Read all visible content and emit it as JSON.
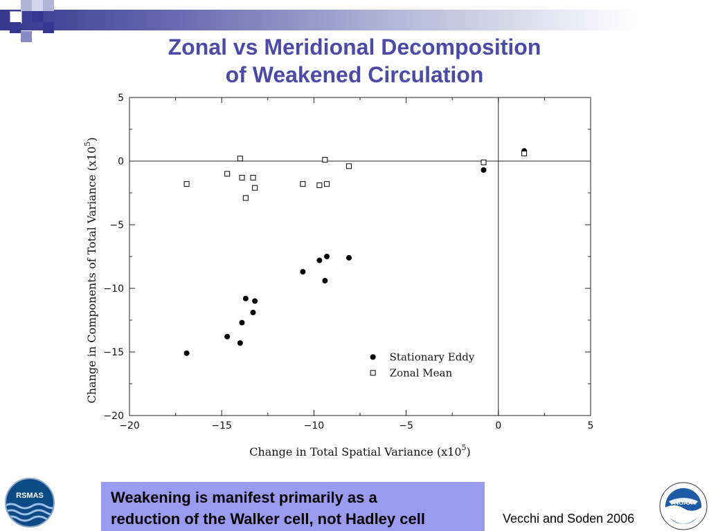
{
  "slide": {
    "title_line1": "Zonal vs Meridional Decomposition",
    "title_line2": "of Weakened Circulation",
    "callout_line1": "Weakening is manifest primarily as a",
    "callout_line2": "reduction of the Walker cell, not Hadley cell",
    "credit": "Vecchi and Soden 2006",
    "logo_left_text": "RSMAS",
    "logo_right_text": "NOAA",
    "colors": {
      "title": "#4b4aa6",
      "callout_bg": "#9a9af0",
      "accent_dark": "#35368f"
    }
  },
  "chart_data": {
    "type": "scatter",
    "title": "",
    "xlabel": "Change in Total Spatial Variance (x10",
    "xlabel_sup": "5",
    "xlabel_end": ")",
    "ylabel": "Change in Components of Total Variance (x10",
    "ylabel_sup": "5",
    "ylabel_end": ")",
    "xlim": [
      -20,
      5
    ],
    "ylim": [
      -20,
      5
    ],
    "xticks": [
      -20,
      -15,
      -10,
      -5,
      0,
      5
    ],
    "yticks": [
      5,
      0,
      -5,
      -10,
      -15,
      -20
    ],
    "xtick_labels": [
      "−20",
      "−15",
      "−10",
      "−5",
      "0",
      "5"
    ],
    "ytick_labels": [
      "5",
      "0",
      "−5",
      "−10",
      "−15",
      "−20"
    ],
    "legend_position": "lower-right",
    "grid": false,
    "zero_lines": true,
    "series": [
      {
        "name": "Stationary Eddy",
        "marker": "filled-circle",
        "x": [
          -16.9,
          -14.7,
          -14.0,
          -13.9,
          -13.7,
          -13.3,
          -13.2,
          -10.6,
          -9.7,
          -9.4,
          -9.3,
          -8.1,
          -0.8,
          1.4
        ],
        "y": [
          -15.1,
          -13.8,
          -14.3,
          -12.7,
          -10.8,
          -11.9,
          -11.0,
          -8.7,
          -7.8,
          -9.4,
          -7.5,
          -7.6,
          -0.7,
          0.8
        ]
      },
      {
        "name": "Zonal Mean",
        "marker": "open-square",
        "x": [
          -16.9,
          -14.7,
          -14.0,
          -13.9,
          -13.7,
          -13.3,
          -13.2,
          -10.6,
          -9.7,
          -9.4,
          -9.3,
          -8.1,
          -0.8,
          1.4
        ],
        "y": [
          -1.8,
          -1.0,
          0.2,
          -1.3,
          -2.9,
          -1.3,
          -2.1,
          -1.8,
          -1.9,
          0.1,
          -1.8,
          -0.4,
          -0.1,
          0.6
        ]
      }
    ]
  }
}
